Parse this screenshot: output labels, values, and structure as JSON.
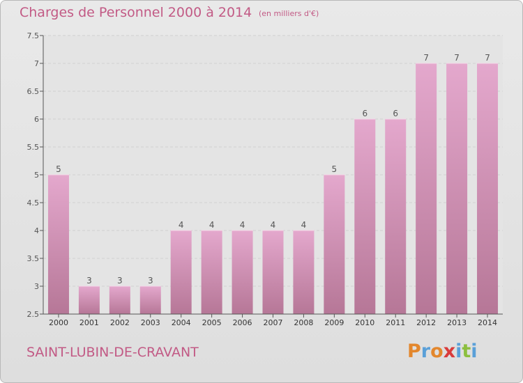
{
  "header": {
    "title": "Charges de Personnel 2000 à 2014",
    "subtitle": "(en milliers d'€)"
  },
  "footer": {
    "commune": "SAINT-LUBIN-DE-CRAVANT",
    "logo_letters": [
      "P",
      "r",
      "o",
      "x",
      "i",
      "t",
      "i"
    ],
    "logo_colors": [
      "#e3872d",
      "#5aa0d8",
      "#e3872d",
      "#d93b3b",
      "#5aa0d8",
      "#8cbf3f",
      "#5aa0d8"
    ]
  },
  "colors": {
    "bar_top": "#e4a8cd",
    "bar_bottom": "#b67797",
    "text": "#c25a85",
    "grid": "#cfcfcf",
    "plot_bg": "#e4e4e4"
  },
  "chart_data": {
    "type": "bar",
    "title": "Charges de Personnel 2000 à 2014",
    "subtitle": "(en milliers d'€)",
    "categories": [
      "2000",
      "2001",
      "2002",
      "2003",
      "2004",
      "2005",
      "2006",
      "2007",
      "2008",
      "2009",
      "2010",
      "2011",
      "2012",
      "2013",
      "2014"
    ],
    "values": [
      5,
      3,
      3,
      3,
      4,
      4,
      4,
      4,
      4,
      5,
      6,
      6,
      7,
      7,
      7
    ],
    "data_labels": [
      "5",
      "3",
      "3",
      "3",
      "4",
      "4",
      "4",
      "4",
      "4",
      "5",
      "6",
      "6",
      "7",
      "7",
      "7"
    ],
    "ylim": [
      2.5,
      7.5
    ],
    "yticks": [
      "2.5",
      "3",
      "3.5",
      "4",
      "4.5",
      "5",
      "5.5",
      "6",
      "6.5",
      "7",
      "7.5"
    ],
    "grid": true
  }
}
